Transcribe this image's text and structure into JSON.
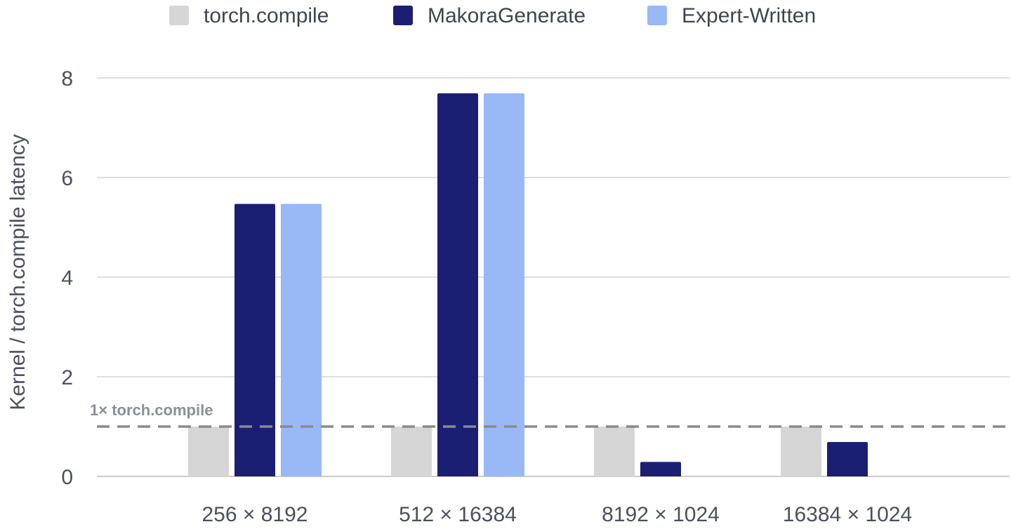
{
  "chart_data": {
    "type": "bar",
    "categories": [
      "256 × 8192",
      "512 × 16384",
      "8192 × 1024",
      "16384 × 1024"
    ],
    "series": [
      {
        "name": "torch.compile",
        "color": "#d6d6d6",
        "values": [
          1.0,
          1.0,
          1.0,
          1.0
        ]
      },
      {
        "name": "MakoraGenerate",
        "color": "#1b1f73",
        "values": [
          5.47,
          7.69,
          0.29,
          0.69
        ]
      },
      {
        "name": "Expert-Written",
        "color": "#99b9f6",
        "values": [
          5.47,
          7.69,
          null,
          null
        ]
      }
    ],
    "ylabel": "Kernel / torch.compile latency",
    "ylim": [
      0,
      8
    ],
    "yticks": [
      0,
      2,
      4,
      6,
      8
    ],
    "grid": true,
    "legend_position": "top",
    "reference_line": {
      "value": 1,
      "label": "1× torch.compile",
      "style": "dashed",
      "color": "#8a8a8a"
    }
  }
}
